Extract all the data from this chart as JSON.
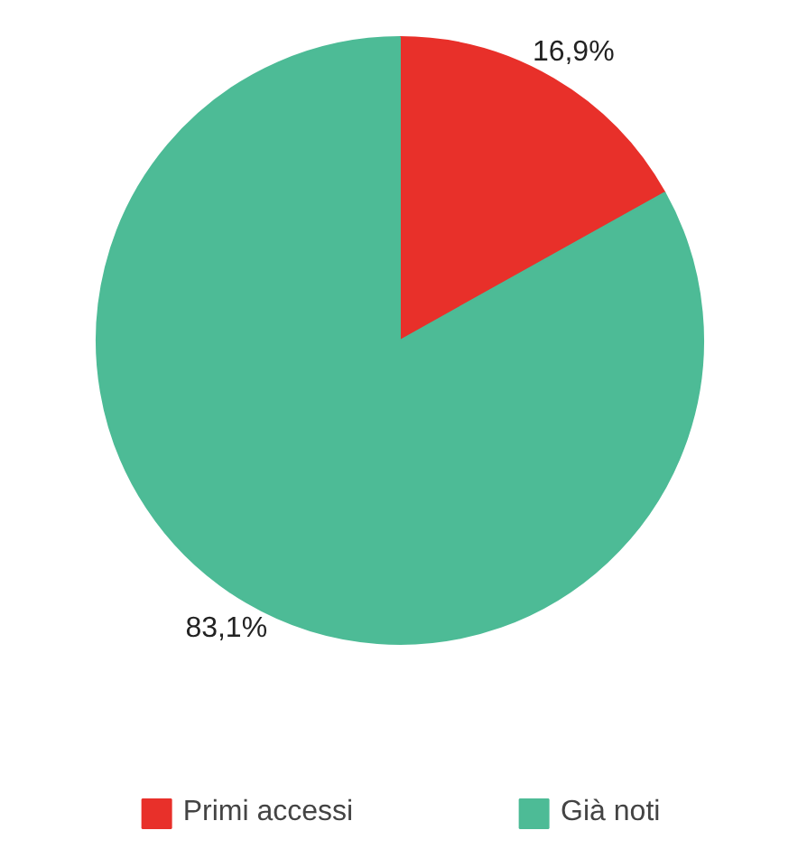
{
  "chart_data": {
    "type": "pie",
    "categories": [
      "Primi accessi",
      "Già noti"
    ],
    "values": [
      16.9,
      83.1
    ],
    "colors": [
      "#e8302a",
      "#4dbb96"
    ],
    "value_labels": [
      "16,9%",
      "83,1%"
    ],
    "legend": "bottom"
  }
}
